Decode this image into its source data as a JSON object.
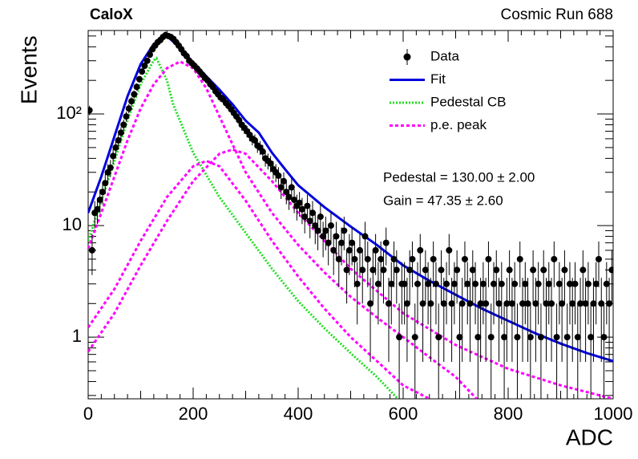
{
  "chart_data": {
    "type": "scatter",
    "title": "CaloX",
    "subtitle": "Cosmic Run 688",
    "x_label": "ADC",
    "y_label": "Events",
    "y_log": true,
    "xlim": [
      0,
      1000
    ],
    "ylim": [
      0.28,
      560
    ],
    "xticks": [
      0,
      200,
      400,
      600,
      800,
      1000
    ],
    "xminorticks": [
      25,
      50,
      75,
      100,
      125,
      150,
      175,
      225,
      250,
      275,
      300,
      325,
      350,
      375,
      425,
      450,
      475,
      500,
      525,
      550,
      575,
      625,
      650,
      675,
      700,
      725,
      750,
      775,
      825,
      850,
      875,
      900,
      925,
      950,
      975
    ],
    "yticks": [
      1,
      10,
      {
        "value": 100,
        "label": "10²"
      }
    ],
    "yminorticks": [
      0.3,
      0.4,
      0.5,
      0.6,
      0.7,
      0.8,
      0.9,
      2,
      3,
      4,
      5,
      6,
      7,
      8,
      9,
      20,
      30,
      40,
      50,
      60,
      70,
      80,
      90,
      200,
      300,
      400,
      500
    ],
    "legend_position": "top-right",
    "annotations": [
      "Pedestal = 130.00 ± 2.00",
      "Gain = 47.35 ± 2.60"
    ],
    "series": [
      {
        "name": "Data",
        "color": "#000000",
        "kind": "points",
        "x": [
          2.5,
          7.5,
          12.5,
          17.5,
          22.5,
          27.5,
          32.5,
          37.5,
          42.5,
          47.5,
          52.5,
          57.5,
          62.5,
          67.5,
          72.5,
          77.5,
          82.5,
          87.5,
          92.5,
          97.5,
          102.5,
          107.5,
          112.5,
          117.5,
          122.5,
          127.5,
          132.5,
          137.5,
          142.5,
          147.5,
          152.5,
          157.5,
          162.5,
          167.5,
          172.5,
          177.5,
          182.5,
          187.5,
          192.5,
          197.5,
          202.5,
          207.5,
          212.5,
          217.5,
          222.5,
          227.5,
          232.5,
          237.5,
          242.5,
          247.5,
          252.5,
          257.5,
          262.5,
          267.5,
          272.5,
          277.5,
          282.5,
          287.5,
          292.5,
          297.5,
          302.5,
          307.5,
          312.5,
          317.5,
          322.5,
          327.5,
          332.5,
          337.5,
          342.5,
          347.5,
          352.5,
          357.5,
          362.5,
          367.5,
          372.5,
          377.5,
          382.5,
          387.5,
          392.5,
          397.5,
          402.5,
          407.5,
          412.5,
          417.5,
          422.5,
          427.5,
          432.5,
          437.5,
          442.5,
          447.5,
          452.5,
          457.5,
          462.5,
          467.5,
          472.5,
          477.5,
          482.5,
          487.5,
          492.5,
          497.5,
          502.5,
          507.5,
          512.5,
          517.5,
          522.5,
          527.5,
          532.5,
          537.5,
          542.5,
          547.5,
          552.5,
          557.5,
          562.5,
          567.5,
          572.5,
          577.5,
          582.5,
          587.5,
          592.5,
          597.5,
          602.5,
          607.5,
          612.5,
          617.5,
          622.5,
          627.5,
          632.5,
          637.5,
          642.5,
          647.5,
          652.5,
          657.5,
          662.5,
          667.5,
          672.5,
          677.5,
          682.5,
          687.5,
          692.5,
          697.5,
          702.5,
          707.5,
          712.5,
          717.5,
          722.5,
          727.5,
          732.5,
          737.5,
          742.5,
          747.5,
          752.5,
          757.5,
          762.5,
          767.5,
          772.5,
          777.5,
          782.5,
          787.5,
          792.5,
          797.5,
          802.5,
          807.5,
          812.5,
          817.5,
          822.5,
          827.5,
          832.5,
          837.5,
          842.5,
          847.5,
          852.5,
          857.5,
          862.5,
          867.5,
          872.5,
          877.5,
          882.5,
          887.5,
          892.5,
          897.5,
          902.5,
          907.5,
          912.5,
          917.5,
          922.5,
          927.5,
          932.5,
          937.5,
          942.5,
          947.5,
          952.5,
          957.5,
          962.5,
          967.5,
          972.5,
          977.5,
          982.5,
          987.5,
          992.5,
          997.5
        ],
        "values": [
          108,
          6,
          13,
          14,
          17,
          20,
          24,
          30,
          33,
          42,
          50,
          58,
          68,
          80,
          95,
          112,
          130,
          150,
          175,
          205,
          240,
          270,
          300,
          340,
          380,
          410,
          440,
          460,
          490,
          510,
          500,
          490,
          470,
          440,
          410,
          380,
          350,
          330,
          300,
          285,
          270,
          255,
          240,
          225,
          210,
          200,
          185,
          175,
          160,
          150,
          140,
          135,
          125,
          118,
          110,
          102,
          95,
          88,
          80,
          75,
          70,
          65,
          60,
          58,
          52,
          50,
          46,
          40,
          38,
          36,
          32,
          30,
          28,
          22,
          25,
          20,
          18,
          22,
          17,
          15,
          16,
          14,
          12,
          15,
          11,
          13,
          10,
          9,
          12,
          8,
          9,
          7,
          10,
          6,
          8,
          5,
          7,
          9,
          4,
          6,
          7,
          5,
          3,
          6,
          4,
          8,
          5,
          2,
          4,
          6,
          3,
          5,
          4,
          7,
          2,
          3,
          5,
          4,
          1,
          3,
          3,
          2,
          4,
          5,
          1,
          3,
          6,
          2,
          4,
          3,
          2,
          5,
          3,
          1,
          4,
          2,
          3,
          6,
          2,
          3,
          4,
          1,
          2,
          5,
          3,
          2,
          4,
          3,
          1,
          2,
          3,
          2,
          5,
          1,
          3,
          4,
          2,
          3,
          1,
          2,
          4,
          2,
          3,
          1,
          5,
          2,
          3,
          2,
          1,
          4,
          2,
          3,
          1,
          4,
          2,
          3,
          2,
          5,
          1,
          3,
          2,
          4,
          1,
          3,
          2,
          3,
          1,
          2,
          4,
          2,
          3,
          1,
          2,
          3,
          5,
          2,
          1,
          3,
          2,
          4
        ],
        "errors": [
          10.4,
          2.4,
          3.6,
          3.7,
          4.1,
          4.5,
          4.9,
          5.5,
          5.7,
          6.5,
          7.1,
          7.6,
          8.2,
          8.9,
          9.7,
          10.6,
          11.4,
          12.2,
          13.2,
          14.3,
          15.5,
          16.4,
          17.3,
          18.4,
          19.5,
          20.2,
          21.0,
          21.4,
          22.1,
          22.6,
          22.4,
          22.1,
          21.7,
          21.0,
          20.2,
          19.5,
          18.7,
          18.2,
          17.3,
          16.9,
          16.4,
          16.0,
          15.5,
          15.0,
          14.5,
          14.1,
          13.6,
          13.2,
          12.6,
          12.2,
          11.8,
          11.6,
          11.2,
          10.9,
          10.5,
          10.1,
          9.7,
          9.4,
          8.9,
          8.7,
          8.4,
          8.1,
          7.7,
          7.6,
          7.2,
          7.1,
          6.8,
          6.3,
          6.2,
          6.0,
          5.7,
          5.5,
          5.3,
          4.7,
          5.0,
          4.5,
          4.2,
          4.7,
          4.1,
          3.9,
          4.0,
          3.7,
          3.5,
          3.9,
          3.3,
          3.6,
          3.2,
          3.0,
          3.5,
          2.8,
          3.0,
          2.6,
          3.2,
          2.4,
          2.8,
          2.2,
          2.6,
          3.0,
          2.0,
          2.4,
          2.6,
          2.2,
          1.7,
          2.4,
          2.0,
          2.8,
          2.2,
          1.4,
          2.0,
          2.4,
          1.7,
          2.2,
          2.0,
          2.6,
          1.4,
          1.7,
          2.2,
          2.0,
          1.0,
          1.7,
          1.7,
          1.4,
          2.0,
          2.2,
          1.0,
          1.7,
          2.4,
          1.4,
          2.0,
          1.7,
          1.4,
          2.2,
          1.7,
          1.0,
          2.0,
          1.4,
          1.7,
          2.4,
          1.4,
          1.7,
          2.0,
          1.0,
          1.4,
          2.2,
          1.7,
          1.4,
          2.0,
          1.7,
          1.0,
          1.4,
          1.7,
          1.4,
          2.2,
          1.0,
          1.7,
          2.0,
          1.4,
          1.7,
          1.0,
          1.4,
          2.0,
          1.4,
          1.7,
          1.0,
          2.2,
          1.4,
          1.7,
          1.4,
          1.0,
          2.0,
          1.4,
          1.7,
          1.0,
          2.0,
          1.4,
          1.7,
          1.4,
          2.2,
          1.0,
          1.7,
          1.4,
          2.0,
          1.0,
          1.7,
          1.4,
          1.7,
          1.0,
          1.4,
          2.0,
          1.4,
          1.7,
          1.0,
          1.4,
          1.7,
          2.2,
          1.4,
          1.0,
          1.7,
          1.4,
          2.0
        ]
      },
      {
        "name": "Fit",
        "color": "#0000dd",
        "kind": "line",
        "x": [
          0,
          25,
          50,
          75,
          100,
          125,
          150,
          175,
          200,
          225,
          250,
          275,
          300,
          325,
          350,
          375,
          400,
          450,
          500,
          550,
          600,
          650,
          700,
          750,
          800,
          850,
          900,
          950,
          1000
        ],
        "values": [
          13,
          27.5,
          63,
          144,
          280,
          425,
          500,
          390,
          290,
          218,
          165,
          122,
          87,
          68,
          45,
          32,
          23,
          14.6,
          9.8,
          6.7,
          4.4,
          3.2,
          2.4,
          1.8,
          1.4,
          1.09,
          0.875,
          0.72,
          0.61
        ]
      },
      {
        "name": "Pedestal CB",
        "color": "#22dd22",
        "kind": "dotted",
        "x": [
          0,
          25,
          50,
          75,
          100,
          125,
          130,
          150,
          162,
          200,
          250,
          300,
          350,
          400,
          450,
          500,
          550,
          590
        ],
        "values": [
          7.3,
          16.7,
          38,
          88,
          185,
          303,
          316,
          200,
          122,
          45,
          18,
          8.6,
          4.1,
          2.1,
          1.2,
          0.72,
          0.44,
          0.28
        ]
      },
      {
        "name": "p.e. peak",
        "color": "#ff00ff",
        "kind": "dashed",
        "curves": [
          {
            "x": [
              0,
              25,
              50,
              75,
              100,
              125,
              150,
              175,
              200,
              225,
              250,
              300,
              350,
              400,
              450,
              500,
              550,
              600,
              650,
              700,
              740
            ],
            "values": [
              6.2,
              13,
              27.5,
              58,
              112,
              185,
              257,
              295,
              257,
              170,
              95,
              30,
              13,
              6.7,
              3.8,
              2.3,
              1.5,
              1,
              0.66,
              0.44,
              0.28
            ]
          },
          {
            "x": [
              0,
              50,
              100,
              150,
              200,
              225,
              250,
              300,
              350,
              400,
              450,
              500,
              550,
              600,
              650
            ],
            "values": [
              1.22,
              2.7,
              7.3,
              18,
              34,
              38,
              34,
              16.7,
              7.3,
              3.5,
              1.8,
              1,
              0.61,
              0.37,
              0.28
            ]
          },
          {
            "x": [
              0,
              50,
              100,
              150,
              200,
              250,
              275,
              300,
              350,
              400,
              450,
              500,
              600,
              700,
              800,
              900,
              1000
            ],
            "values": [
              0.74,
              1.64,
              4.4,
              11,
              25,
              44,
              48,
              44,
              25,
              13,
              7.3,
              4.1,
              1.64,
              0.85,
              0.52,
              0.37,
              0.28
            ]
          }
        ]
      }
    ]
  }
}
